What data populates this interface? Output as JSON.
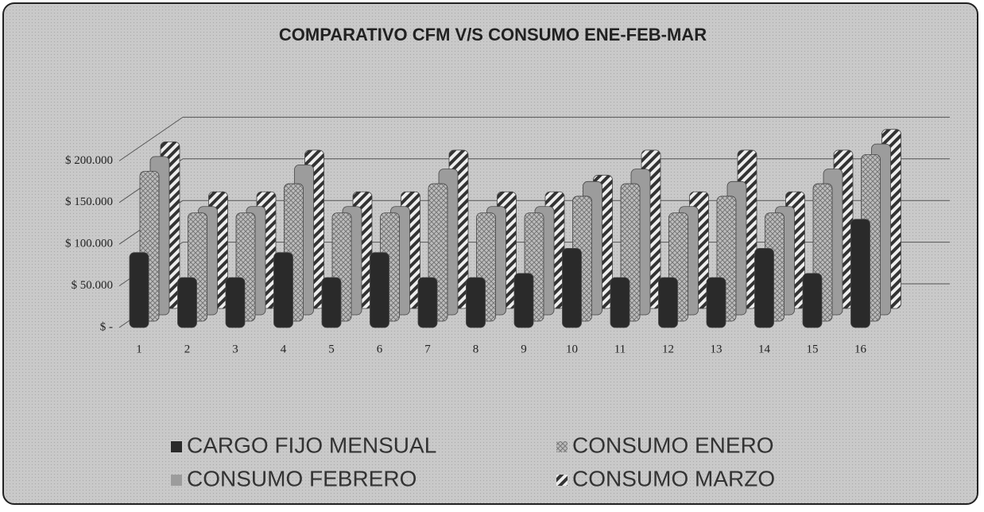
{
  "chart_data": {
    "type": "bar",
    "title": "COMPARATIVO CFM V/S CONSUMO ENE-FEB-MAR",
    "categories": [
      "1",
      "2",
      "3",
      "4",
      "5",
      "6",
      "7",
      "8",
      "9",
      "10",
      "11",
      "12",
      "13",
      "14",
      "15",
      "16"
    ],
    "series": [
      {
        "name": "CARGO FIJO MENSUAL",
        "color": "#2a2a2a",
        "values": [
          90000,
          60000,
          60000,
          90000,
          60000,
          90000,
          60000,
          60000,
          65000,
          95000,
          60000,
          60000,
          60000,
          95000,
          65000,
          130000
        ]
      },
      {
        "name": "CONSUMO ENERO",
        "color": "#bdbdbd",
        "values": [
          180000,
          130000,
          130000,
          165000,
          130000,
          130000,
          165000,
          130000,
          130000,
          150000,
          165000,
          130000,
          150000,
          130000,
          165000,
          200000
        ]
      },
      {
        "name": "CONSUMO FEBRERO",
        "color": "#9c9c9c",
        "values": [
          190000,
          130000,
          130000,
          180000,
          130000,
          130000,
          175000,
          130000,
          130000,
          160000,
          175000,
          130000,
          160000,
          130000,
          175000,
          205000
        ]
      },
      {
        "name": "CONSUMO MARZO",
        "color": "#d6d6d6",
        "values": [
          200000,
          140000,
          140000,
          190000,
          140000,
          140000,
          190000,
          140000,
          140000,
          160000,
          190000,
          140000,
          190000,
          140000,
          190000,
          215000
        ]
      }
    ],
    "ylim": [
      0,
      250000
    ],
    "yticks": [
      {
        "value": 0,
        "label": "$ -"
      },
      {
        "value": 50000,
        "label": "$ 50.000"
      },
      {
        "value": 100000,
        "label": "$ 100.000"
      },
      {
        "value": 150000,
        "label": "$ 150.000"
      },
      {
        "value": 200000,
        "label": "$ 200.000"
      }
    ],
    "grid": true
  }
}
